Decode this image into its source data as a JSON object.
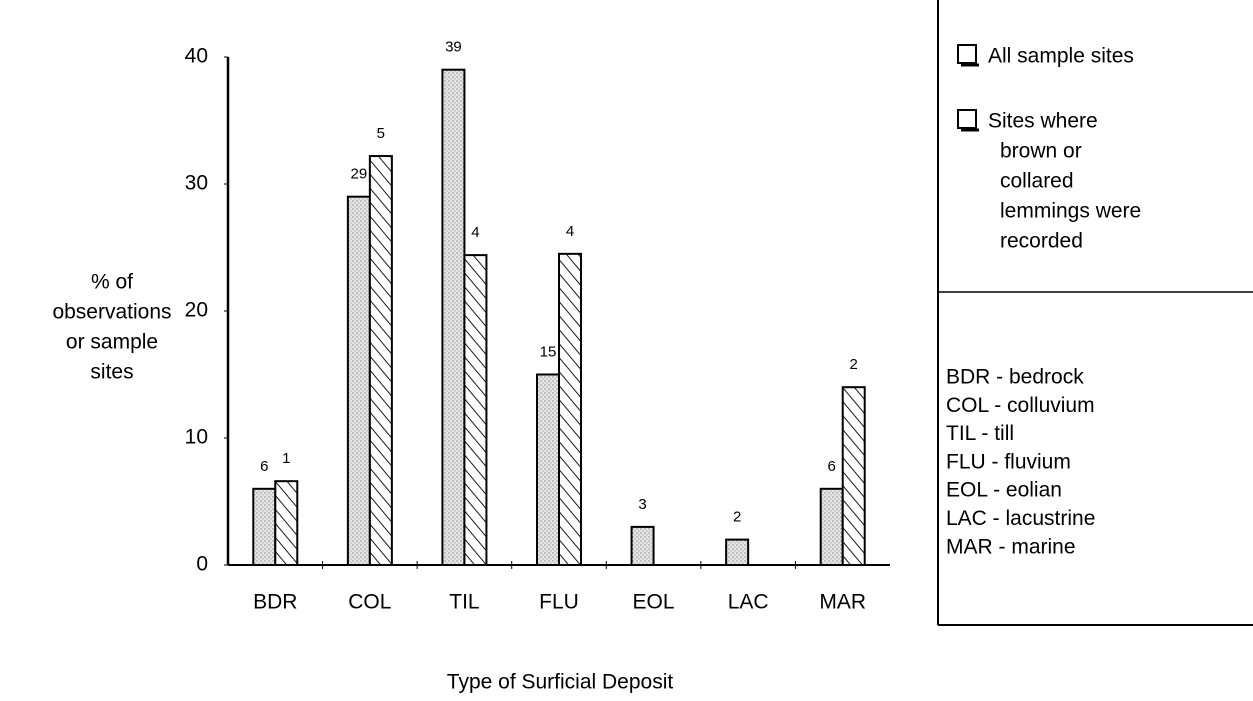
{
  "chart_data": {
    "type": "bar",
    "categories": [
      "BDR",
      "COL",
      "TIL",
      "FLU",
      "EOL",
      "LAC",
      "MAR"
    ],
    "series": [
      {
        "name": "All sample sites",
        "pattern": "dots",
        "color": "#000000",
        "values": [
          6,
          29,
          39,
          15,
          3,
          2,
          6
        ]
      },
      {
        "name": [
          "Sites where",
          "brown or",
          "collared",
          "lemmings were",
          "recorded"
        ],
        "pattern": "hatch",
        "color": "#000000",
        "values": [
          6.6,
          32.2,
          24.4,
          24.5,
          null,
          null,
          14.0
        ],
        "labels": [
          1,
          5,
          4,
          4,
          null,
          null,
          2
        ]
      }
    ],
    "ylabel": [
      "% of",
      "observations",
      "or sample",
      "sites"
    ],
    "xlabel": "Type of Surficial Deposit",
    "ylim": [
      0,
      40
    ],
    "yticks": [
      0,
      10,
      20,
      30,
      40
    ],
    "key": [
      "BDR - bedrock",
      "COL - colluvium",
      "TIL - till",
      "FLU - fluvium",
      "EOL - eolian",
      "LAC - lacustrine",
      "MAR - marine"
    ]
  }
}
